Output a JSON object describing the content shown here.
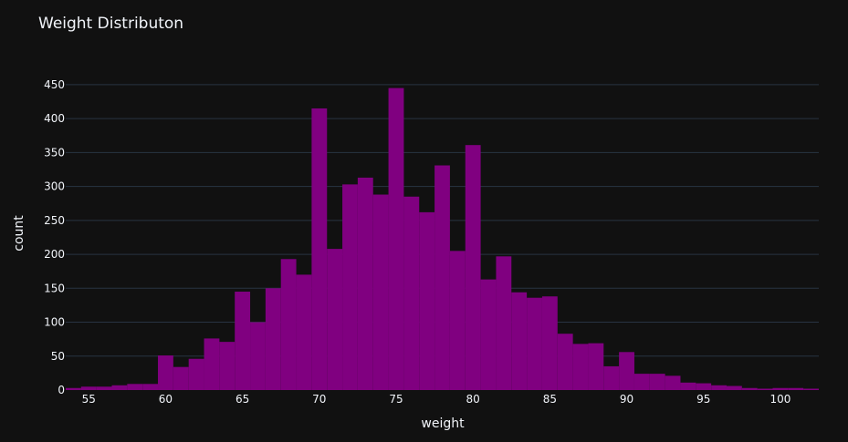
{
  "chart_data": {
    "type": "bar",
    "title": "Weight Distributon",
    "xlabel": "weight",
    "ylabel": "count",
    "bar_color": "#800080",
    "background": "#111111",
    "grid_color": "#283442",
    "text_color": "#f2f5fa",
    "grid": true,
    "xlim": [
      53.5,
      102.5
    ],
    "ylim": [
      0,
      470
    ],
    "bin_width": 1,
    "x_ticks": [
      55,
      60,
      65,
      70,
      75,
      80,
      85,
      90,
      95,
      100
    ],
    "y_ticks": [
      0,
      50,
      100,
      150,
      200,
      250,
      300,
      350,
      400,
      450
    ],
    "x": [
      54,
      55,
      56,
      57,
      58,
      59,
      60,
      61,
      62,
      63,
      64,
      65,
      66,
      67,
      68,
      69,
      70,
      71,
      72,
      73,
      74,
      75,
      76,
      77,
      78,
      79,
      80,
      81,
      82,
      83,
      84,
      85,
      86,
      87,
      88,
      89,
      90,
      91,
      92,
      93,
      94,
      95,
      96,
      97,
      98,
      99,
      100,
      101,
      102
    ],
    "values": [
      3,
      5,
      5,
      7,
      9,
      9,
      51,
      34,
      46,
      76,
      71,
      145,
      100,
      150,
      193,
      170,
      415,
      208,
      303,
      313,
      288,
      445,
      285,
      262,
      331,
      205,
      361,
      163,
      197,
      144,
      136,
      138,
      83,
      68,
      69,
      35,
      56,
      24,
      24,
      21,
      11,
      10,
      7,
      6,
      3,
      2,
      3,
      3,
      2
    ]
  }
}
